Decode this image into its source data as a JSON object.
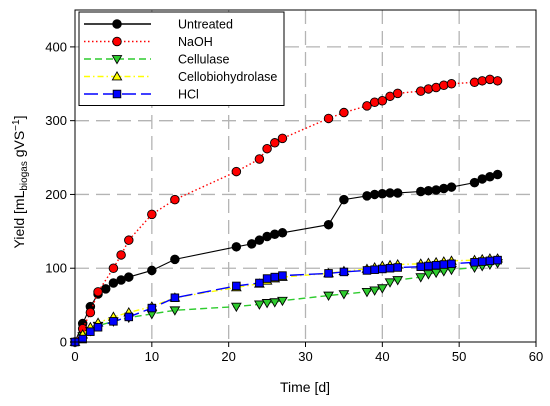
{
  "chart_data": {
    "type": "line",
    "title": "",
    "xlabel": "Time [d]",
    "ylabel_main": "Yield [mL",
    "ylabel_sub": "biogas",
    "ylabel_tail": " gVS",
    "ylabel_sup": "−1",
    "ylabel_end": "]",
    "xlim": [
      0,
      60
    ],
    "ylim": [
      0,
      450
    ],
    "xticks": [
      0,
      10,
      20,
      30,
      40,
      50,
      60
    ],
    "yticks": [
      0,
      100,
      200,
      300,
      400
    ],
    "grid": "dashed, major ticks",
    "legend_position": "top-left",
    "series": [
      {
        "name": "Untreated",
        "color": "#000000",
        "line_style": "solid",
        "marker": "circle",
        "x": [
          0,
          1,
          2,
          3,
          4,
          5,
          6,
          7,
          10,
          13,
          21,
          23,
          24,
          25,
          26,
          27,
          33,
          35,
          38,
          39,
          40,
          41,
          42,
          45,
          46,
          47,
          48,
          49,
          52,
          53,
          54,
          55
        ],
        "y": [
          0,
          25,
          48,
          65,
          72,
          80,
          84,
          88,
          97,
          112,
          129,
          133,
          138,
          143,
          146,
          148,
          159,
          193,
          198,
          200,
          201,
          202,
          202,
          204,
          205,
          206,
          208,
          210,
          216,
          221,
          224,
          227
        ]
      },
      {
        "name": "NaOH",
        "color": "#ff0000",
        "line_style": "dotted",
        "marker": "circle",
        "x": [
          0,
          1,
          2,
          3,
          5,
          6,
          7,
          10,
          13,
          21,
          24,
          25,
          26,
          27,
          33,
          35,
          38,
          39,
          40,
          41,
          42,
          45,
          46,
          47,
          48,
          49,
          52,
          53,
          54,
          55
        ],
        "y": [
          0,
          18,
          40,
          68,
          100,
          118,
          138,
          173,
          193,
          231,
          248,
          262,
          270,
          276,
          303,
          311,
          320,
          325,
          327,
          333,
          337,
          340,
          343,
          345,
          348,
          350,
          352,
          354,
          356,
          354
        ]
      },
      {
        "name": "Cellulase",
        "color": "#2ecc2e",
        "line_style": "dashed",
        "marker": "triangle-down",
        "x": [
          0,
          1,
          2,
          3,
          5,
          7,
          10,
          13,
          21,
          24,
          25,
          26,
          27,
          33,
          35,
          38,
          39,
          40,
          41,
          42,
          45,
          46,
          47,
          48,
          49,
          52,
          53,
          54,
          55
        ],
        "y": [
          0,
          8,
          15,
          22,
          28,
          33,
          38,
          43,
          48,
          51,
          53,
          54,
          56,
          63,
          65,
          68,
          70,
          73,
          81,
          84,
          88,
          92,
          94,
          96,
          98,
          101,
          103,
          105,
          107
        ]
      },
      {
        "name": "Cellobiohydrolase",
        "color": "#ffff00",
        "line_style": "dash-dot",
        "marker": "triangle-up",
        "x": [
          0,
          1,
          2,
          3,
          5,
          7,
          10,
          13,
          21,
          24,
          25,
          26,
          27,
          33,
          35,
          38,
          39,
          40,
          41,
          42,
          45,
          46,
          47,
          48,
          49,
          52,
          53,
          54,
          55
        ],
        "y": [
          0,
          10,
          20,
          26,
          34,
          40,
          48,
          60,
          74,
          79,
          83,
          86,
          88,
          93,
          96,
          99,
          101,
          103,
          104,
          105,
          106,
          107,
          108,
          109,
          110,
          111,
          112,
          113,
          113
        ]
      },
      {
        "name": "HCl",
        "color": "#0000ff",
        "line_style": "long-dash",
        "marker": "square",
        "x": [
          0,
          1,
          2,
          3,
          5,
          7,
          10,
          13,
          21,
          24,
          25,
          26,
          27,
          33,
          35,
          38,
          39,
          40,
          41,
          42,
          45,
          46,
          47,
          48,
          49,
          52,
          53,
          54,
          55
        ],
        "y": [
          0,
          4,
          14,
          20,
          28,
          34,
          46,
          60,
          76,
          80,
          86,
          88,
          90,
          93,
          95,
          97,
          98,
          99,
          100,
          101,
          102,
          103,
          104,
          105,
          106,
          108,
          109,
          110,
          111
        ]
      }
    ]
  }
}
